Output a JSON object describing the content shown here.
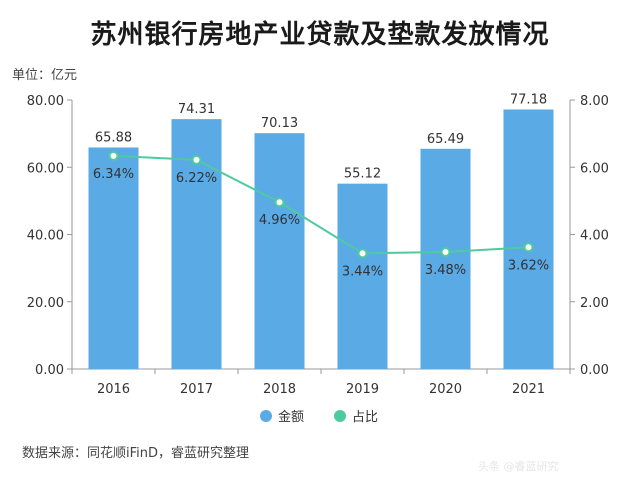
{
  "header": {
    "title": "苏州银行房地产业贷款及垫款发放情况",
    "unit": "单位：亿元"
  },
  "footer": {
    "source": "数据来源：同花顺iFinD，睿蓝研究整理",
    "watermark": "头条 @睿蓝研究"
  },
  "colors": {
    "bar": "#5aaae6",
    "line": "#4ecb9e",
    "axis": "#999999"
  },
  "chart_data": {
    "type": "bar",
    "categories": [
      "2016",
      "2017",
      "2018",
      "2019",
      "2020",
      "2021"
    ],
    "series": [
      {
        "name": "金额",
        "type": "bar",
        "axis": "left",
        "values": [
          65.88,
          74.31,
          70.13,
          55.12,
          65.49,
          77.18
        ],
        "labels": [
          "65.88",
          "74.31",
          "70.13",
          "55.12",
          "65.49",
          "77.18"
        ]
      },
      {
        "name": "占比",
        "type": "line",
        "axis": "right",
        "values": [
          6.34,
          6.22,
          4.96,
          3.44,
          3.48,
          3.62
        ],
        "labels": [
          "6.34%",
          "6.22%",
          "4.96%",
          "3.44%",
          "3.48%",
          "3.62%"
        ]
      }
    ],
    "y_left": {
      "min": 0,
      "max": 80,
      "ticks": [
        "0.00",
        "20.00",
        "40.00",
        "60.00",
        "80.00"
      ]
    },
    "y_right": {
      "min": 0,
      "max": 8,
      "ticks": [
        "0.00",
        "2.00",
        "4.00",
        "6.00",
        "8.00"
      ]
    },
    "legend_position": "bottom-center",
    "grid": false
  }
}
